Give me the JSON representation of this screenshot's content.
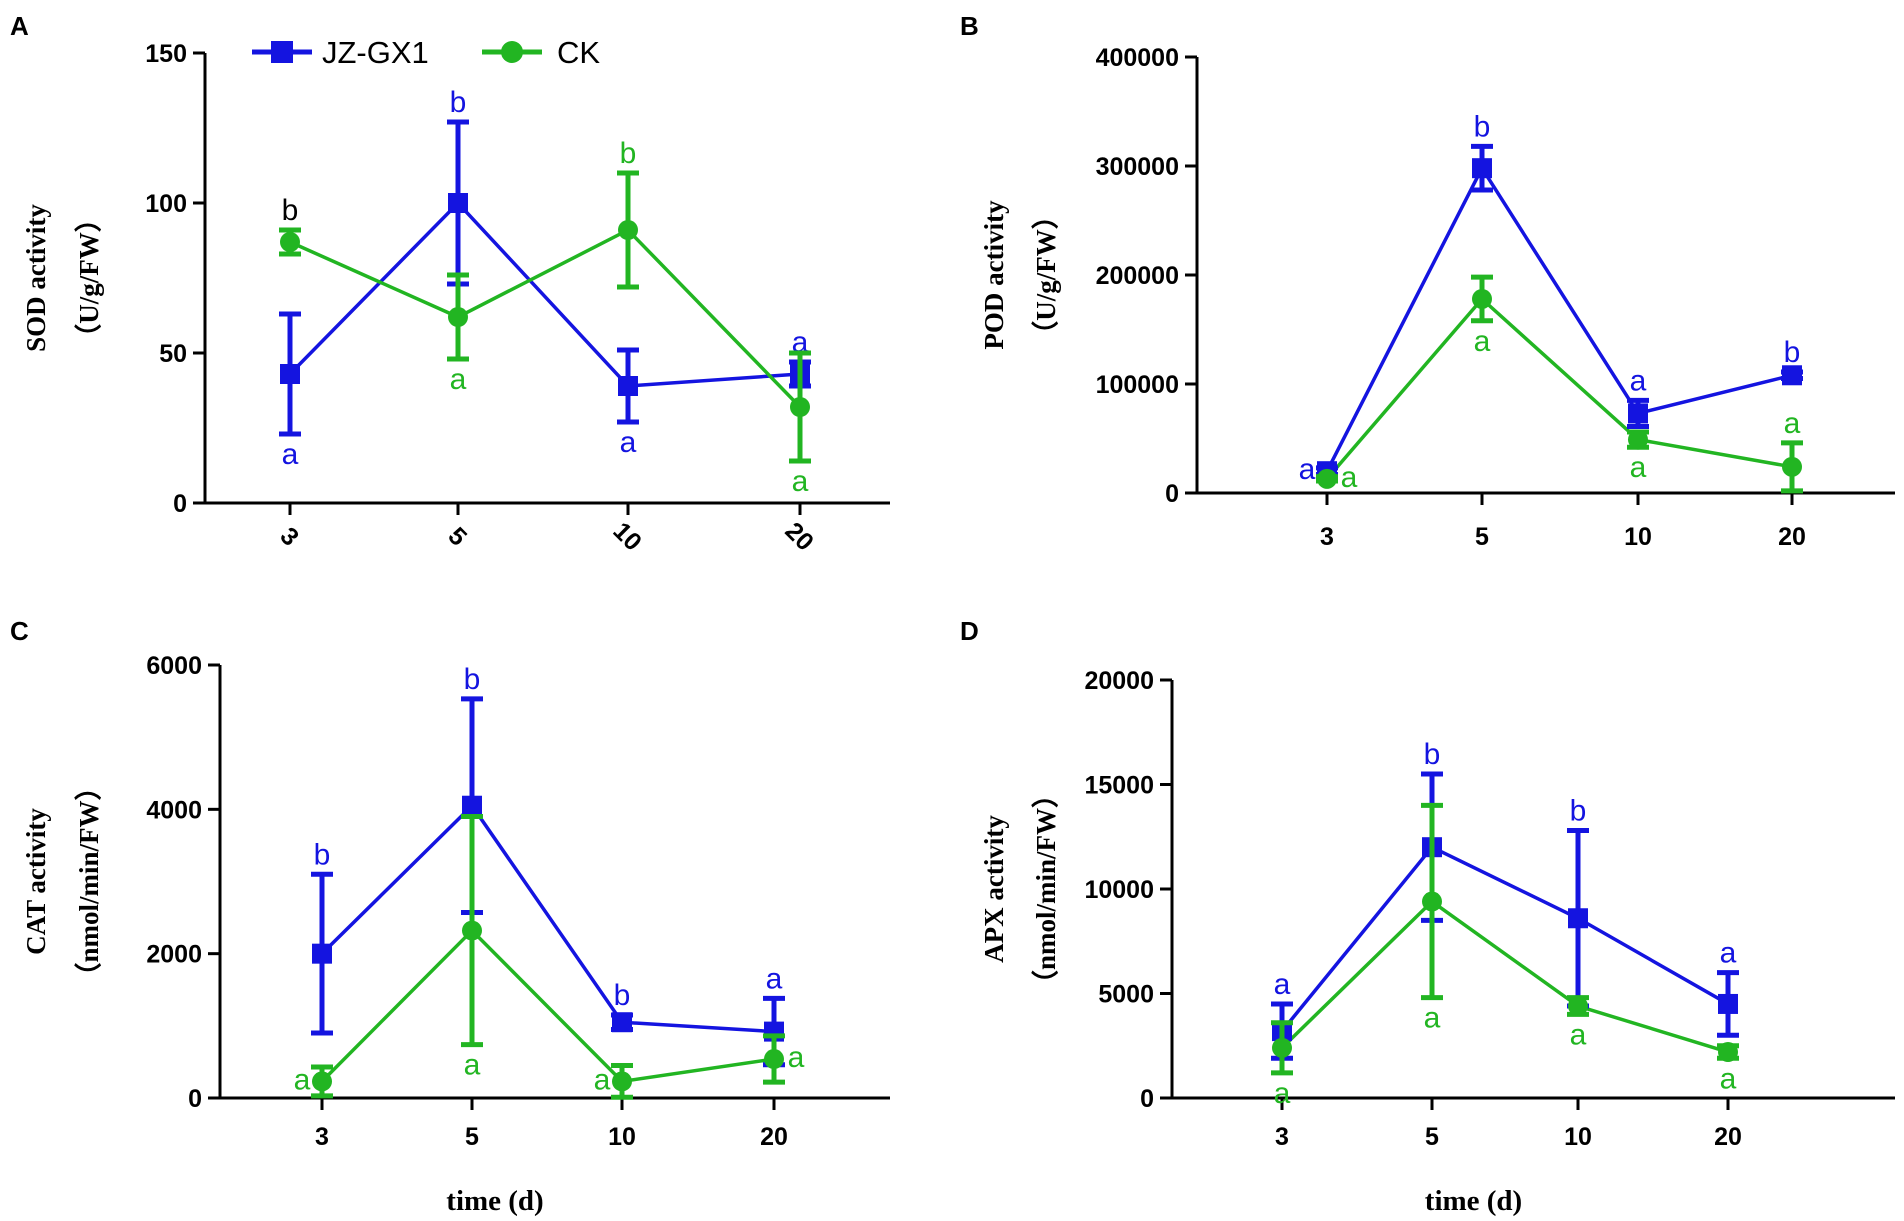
{
  "colors": {
    "jz": "#1414E0",
    "ck": "#22B522",
    "axis": "#000000"
  },
  "legend": {
    "items": [
      {
        "name": "JZ-GX1",
        "color": "#1414E0",
        "marker": "square"
      },
      {
        "name": "CK",
        "color": "#22B522",
        "marker": "circle"
      }
    ]
  },
  "chart_data": [
    {
      "panel": "A",
      "type": "line",
      "categories": [
        "3",
        "5",
        "10",
        "20"
      ],
      "ylabel_line1": "SOD activity",
      "ylabel_line2": "（U/g/FW）",
      "xlabel": "",
      "ylim": [
        0,
        150
      ],
      "yticks": [
        0,
        50,
        100,
        150
      ],
      "tick_rotation": 45,
      "series": [
        {
          "name": "JZ-GX1",
          "values": [
            43,
            100,
            39,
            43
          ],
          "errors": [
            20,
            27,
            12,
            4
          ],
          "letters": [
            "a",
            "b",
            "a",
            "a"
          ],
          "letter_pos": [
            "below",
            "above",
            "below",
            "above"
          ]
        },
        {
          "name": "CK",
          "values": [
            87,
            62,
            91,
            32
          ],
          "errors": [
            4,
            14,
            19,
            18
          ],
          "letters": [
            "b",
            "a",
            "b",
            "a"
          ],
          "letter_pos": [
            "above",
            "below",
            "above",
            "below"
          ],
          "letter_colors": [
            "#000000",
            null,
            null,
            null
          ]
        }
      ]
    },
    {
      "panel": "B",
      "type": "line",
      "categories": [
        "3",
        "5",
        "10",
        "20"
      ],
      "ylabel_line1": "POD activity",
      "ylabel_line2": "（U/g/FW）",
      "xlabel": "",
      "ylim": [
        0,
        400000
      ],
      "yticks": [
        0,
        100000,
        200000,
        300000,
        400000
      ],
      "tick_rotation": 0,
      "series": [
        {
          "name": "JZ-GX1",
          "values": [
            20000,
            298000,
            73000,
            108000
          ],
          "errors": [
            3000,
            20000,
            12000,
            3000
          ],
          "letters": [
            "a",
            "b",
            "a",
            "b"
          ],
          "letter_pos": [
            "left",
            "above",
            "above",
            "above"
          ]
        },
        {
          "name": "CK",
          "values": [
            13000,
            178000,
            49000,
            24000
          ],
          "errors": [
            2000,
            20000,
            7000,
            22000
          ],
          "letters": [
            "a",
            "a",
            "a",
            "a"
          ],
          "letter_pos": [
            "right",
            "below",
            "below",
            "above"
          ]
        }
      ]
    },
    {
      "panel": "C",
      "type": "line",
      "categories": [
        "3",
        "5",
        "10",
        "20"
      ],
      "ylabel_line1": "CAT activity",
      "ylabel_line2": "（nmol/min/FW）",
      "xlabel": "time (d)",
      "ylim": [
        0,
        6000
      ],
      "yticks": [
        0,
        2000,
        4000,
        6000
      ],
      "tick_rotation": 0,
      "series": [
        {
          "name": "JZ-GX1",
          "values": [
            2000,
            4050,
            1050,
            920
          ],
          "errors": [
            1100,
            1480,
            100,
            460
          ],
          "letters": [
            "b",
            "b",
            "b",
            "a"
          ],
          "letter_pos": [
            "above",
            "above",
            "above",
            "above"
          ]
        },
        {
          "name": "CK",
          "values": [
            230,
            2320,
            230,
            540
          ],
          "errors": [
            200,
            1580,
            220,
            320
          ],
          "letters": [
            "a",
            "a",
            "a",
            "a"
          ],
          "letter_pos": [
            "left",
            "below",
            "left",
            "right"
          ]
        }
      ]
    },
    {
      "panel": "D",
      "type": "line",
      "categories": [
        "3",
        "5",
        "10",
        "20"
      ],
      "ylabel_line1": "APX activity",
      "ylabel_line2": "（nmol/min/FW）",
      "xlabel": "time (d)",
      "ylim": [
        0,
        20000
      ],
      "yticks": [
        0,
        5000,
        10000,
        15000,
        20000
      ],
      "tick_rotation": 0,
      "series": [
        {
          "name": "JZ-GX1",
          "values": [
            3200,
            12000,
            8600,
            4500
          ],
          "errors": [
            1300,
            3500,
            4200,
            1500
          ],
          "letters": [
            "a",
            "b",
            "b",
            "a"
          ],
          "letter_pos": [
            "above",
            "above",
            "above",
            "above"
          ]
        },
        {
          "name": "CK",
          "values": [
            2400,
            9400,
            4400,
            2200
          ],
          "errors": [
            1200,
            4600,
            400,
            300
          ],
          "letters": [
            "a",
            "a",
            "a",
            "a"
          ],
          "letter_pos": [
            "below",
            "below",
            "below",
            "below"
          ]
        }
      ]
    }
  ]
}
